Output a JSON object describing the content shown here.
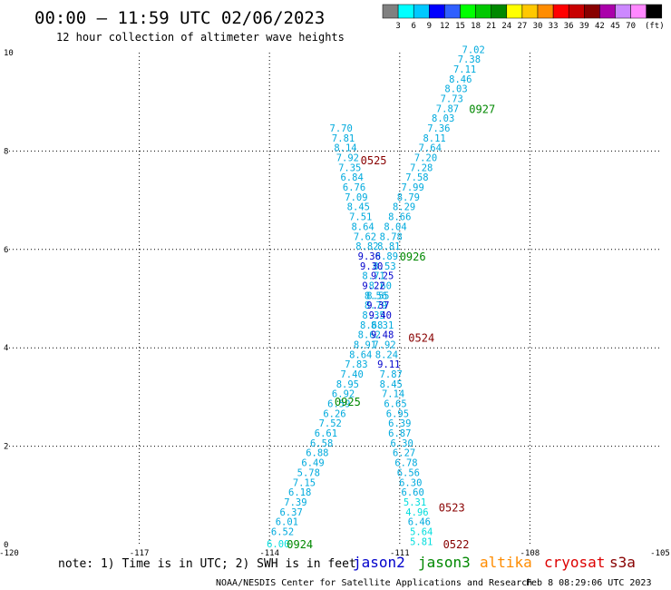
{
  "chart_data": {
    "type": "scatter",
    "title": "00:00 – 11:59 UTC 02/06/2023",
    "subtitle": "12 hour collection of altimeter wave heights",
    "xlim": [
      -120,
      -105
    ],
    "ylim": [
      0,
      10
    ],
    "xticks": [
      -120,
      -117,
      -114,
      -111,
      -108,
      -105
    ],
    "xtick_labels": [
      "-120",
      "-117",
      "-114",
      "-111",
      "-108",
      "-105"
    ],
    "yticks": [
      0,
      2,
      4,
      6,
      8,
      10
    ],
    "ytick_labels": [
      "0",
      "2",
      "4",
      "6",
      "8",
      "10"
    ],
    "grid": true,
    "colorbar": {
      "labels": [
        "3",
        "6",
        "9",
        "12",
        "15",
        "18",
        "21",
        "24",
        "27",
        "30",
        "33",
        "36",
        "39",
        "42",
        "45",
        "70"
      ],
      "unit": "(ft)",
      "colors": [
        "#808080",
        "#00ffff",
        "#00c8ff",
        "#0000ff",
        "#3060ff",
        "#00ff00",
        "#00c800",
        "#008800",
        "#ffff00",
        "#ffc800",
        "#ff8c00",
        "#ff0000",
        "#c80000",
        "#880000",
        "#aa00aa",
        "#cc88ff",
        "#ff88ff",
        "#000000"
      ]
    },
    "series": [
      {
        "name": "pass-a",
        "values": [
          {
            "x": -113.8,
            "y": 0.0,
            "v": "6.00",
            "c": "#00dddd"
          },
          {
            "x": -113.7,
            "y": 0.25,
            "v": "6.52",
            "c": "#00aadd"
          },
          {
            "x": -113.6,
            "y": 0.45,
            "v": "6.01",
            "c": "#00aadd"
          },
          {
            "x": -113.5,
            "y": 0.65,
            "v": "6.37",
            "c": "#00aadd"
          },
          {
            "x": -113.4,
            "y": 0.85,
            "v": "7.39",
            "c": "#00aadd"
          },
          {
            "x": -113.3,
            "y": 1.05,
            "v": "6.18",
            "c": "#00aadd"
          },
          {
            "x": -113.2,
            "y": 1.25,
            "v": "7.15",
            "c": "#00aadd"
          },
          {
            "x": -113.1,
            "y": 1.45,
            "v": "5.78",
            "c": "#00aadd"
          },
          {
            "x": -113.0,
            "y": 1.65,
            "v": "6.49",
            "c": "#00aadd"
          },
          {
            "x": -112.9,
            "y": 1.85,
            "v": "6.88",
            "c": "#00aadd"
          },
          {
            "x": -112.8,
            "y": 2.05,
            "v": "6.58",
            "c": "#00aadd"
          },
          {
            "x": -112.7,
            "y": 2.25,
            "v": "6.61",
            "c": "#00aadd"
          },
          {
            "x": -112.6,
            "y": 2.45,
            "v": "7.52",
            "c": "#00aadd"
          },
          {
            "x": -112.5,
            "y": 2.65,
            "v": "6.26",
            "c": "#00aadd"
          },
          {
            "x": -112.4,
            "y": 2.85,
            "v": "6.59",
            "c": "#00aadd"
          },
          {
            "x": -112.3,
            "y": 3.05,
            "v": "6.92",
            "c": "#00aadd"
          },
          {
            "x": -112.2,
            "y": 3.25,
            "v": "8.95",
            "c": "#00aadd"
          },
          {
            "x": -112.1,
            "y": 3.45,
            "v": "7.40",
            "c": "#00aadd"
          },
          {
            "x": -112.0,
            "y": 3.65,
            "v": "7.83",
            "c": "#00aadd"
          },
          {
            "x": -111.9,
            "y": 3.85,
            "v": "8.64",
            "c": "#00aadd"
          },
          {
            "x": -111.8,
            "y": 4.05,
            "v": "8.91",
            "c": "#00aadd"
          },
          {
            "x": -111.7,
            "y": 4.25,
            "v": "8.62",
            "c": "#00aadd"
          },
          {
            "x": -111.65,
            "y": 4.45,
            "v": "8.68",
            "c": "#00aadd"
          },
          {
            "x": -111.6,
            "y": 4.65,
            "v": "8.35",
            "c": "#00aadd"
          },
          {
            "x": -111.55,
            "y": 4.85,
            "v": "8.79",
            "c": "#00aadd"
          },
          {
            "x": -111.5,
            "y": 5.05,
            "v": "8.55",
            "c": "#00aadd"
          },
          {
            "x": -111.45,
            "y": 5.25,
            "v": "8.60",
            "c": "#00aadd"
          },
          {
            "x": -111.4,
            "y": 5.45,
            "v": "9.25",
            "c": "#0000cc"
          },
          {
            "x": -111.35,
            "y": 5.65,
            "v": "8.53",
            "c": "#00aadd"
          },
          {
            "x": -111.3,
            "y": 5.85,
            "v": "8.89",
            "c": "#00aadd"
          },
          {
            "x": -111.25,
            "y": 6.05,
            "v": "8.81",
            "c": "#00aadd"
          },
          {
            "x": -111.2,
            "y": 6.25,
            "v": "8.78",
            "c": "#00aadd"
          },
          {
            "x": -111.1,
            "y": 6.45,
            "v": "8.04",
            "c": "#00aadd"
          },
          {
            "x": -111.0,
            "y": 6.65,
            "v": "8.66",
            "c": "#00aadd"
          },
          {
            "x": -110.9,
            "y": 6.85,
            "v": "8.29",
            "c": "#00aadd"
          },
          {
            "x": -110.8,
            "y": 7.05,
            "v": "8.79",
            "c": "#00aadd"
          },
          {
            "x": -110.7,
            "y": 7.25,
            "v": "7.99",
            "c": "#00aadd"
          },
          {
            "x": -110.6,
            "y": 7.45,
            "v": "7.58",
            "c": "#00aadd"
          },
          {
            "x": -110.5,
            "y": 7.65,
            "v": "7.28",
            "c": "#00aadd"
          },
          {
            "x": -110.4,
            "y": 7.85,
            "v": "7.20",
            "c": "#00aadd"
          },
          {
            "x": -110.3,
            "y": 8.05,
            "v": "7.64",
            "c": "#00aadd"
          },
          {
            "x": -110.2,
            "y": 8.25,
            "v": "8.11",
            "c": "#00aadd"
          },
          {
            "x": -110.1,
            "y": 8.45,
            "v": "7.36",
            "c": "#00aadd"
          },
          {
            "x": -110.0,
            "y": 8.65,
            "v": "8.03",
            "c": "#00aadd"
          },
          {
            "x": -109.9,
            "y": 8.85,
            "v": "7.87",
            "c": "#00aadd"
          },
          {
            "x": -109.8,
            "y": 9.05,
            "v": "7.73",
            "c": "#00aadd"
          },
          {
            "x": -109.7,
            "y": 9.25,
            "v": "8.03",
            "c": "#00aadd"
          },
          {
            "x": -109.6,
            "y": 9.45,
            "v": "8.46",
            "c": "#00aadd"
          },
          {
            "x": -109.5,
            "y": 9.65,
            "v": "7.11",
            "c": "#00aadd"
          },
          {
            "x": -109.4,
            "y": 9.85,
            "v": "7.38",
            "c": "#00aadd"
          },
          {
            "x": -109.3,
            "y": 10.05,
            "v": "7.02",
            "c": "#00aadd"
          }
        ]
      },
      {
        "name": "pass-b",
        "values": [
          {
            "x": -110.5,
            "y": 0.05,
            "v": "5.81",
            "c": "#00dddd"
          },
          {
            "x": -110.5,
            "y": 0.25,
            "v": "5.64",
            "c": "#00dddd"
          },
          {
            "x": -110.55,
            "y": 0.45,
            "v": "6.46",
            "c": "#00aadd"
          },
          {
            "x": -110.6,
            "y": 0.65,
            "v": "4.96",
            "c": "#00dddd"
          },
          {
            "x": -110.65,
            "y": 0.85,
            "v": "5.31",
            "c": "#00dddd"
          },
          {
            "x": -110.7,
            "y": 1.05,
            "v": "6.60",
            "c": "#00aadd"
          },
          {
            "x": -110.75,
            "y": 1.25,
            "v": "6.30",
            "c": "#00aadd"
          },
          {
            "x": -110.8,
            "y": 1.45,
            "v": "6.56",
            "c": "#00aadd"
          },
          {
            "x": -110.85,
            "y": 1.65,
            "v": "6.78",
            "c": "#00aadd"
          },
          {
            "x": -110.9,
            "y": 1.85,
            "v": "6.27",
            "c": "#00aadd"
          },
          {
            "x": -110.95,
            "y": 2.05,
            "v": "6.30",
            "c": "#00aadd"
          },
          {
            "x": -111.0,
            "y": 2.25,
            "v": "6.87",
            "c": "#00aadd"
          },
          {
            "x": -111.0,
            "y": 2.45,
            "v": "6.39",
            "c": "#00aadd"
          },
          {
            "x": -111.05,
            "y": 2.65,
            "v": "6.95",
            "c": "#00aadd"
          },
          {
            "x": -111.1,
            "y": 2.85,
            "v": "6.65",
            "c": "#00aadd"
          },
          {
            "x": -111.15,
            "y": 3.05,
            "v": "7.14",
            "c": "#00aadd"
          },
          {
            "x": -111.2,
            "y": 3.25,
            "v": "8.45",
            "c": "#00aadd"
          },
          {
            "x": -111.2,
            "y": 3.45,
            "v": "7.87",
            "c": "#00aadd"
          },
          {
            "x": -111.25,
            "y": 3.65,
            "v": "9.11",
            "c": "#0000cc"
          },
          {
            "x": -111.3,
            "y": 3.85,
            "v": "8.24",
            "c": "#00aadd"
          },
          {
            "x": -111.35,
            "y": 4.05,
            "v": "7.92",
            "c": "#00aadd"
          },
          {
            "x": -111.4,
            "y": 4.25,
            "v": "9.48",
            "c": "#0000cc"
          },
          {
            "x": -111.4,
            "y": 4.45,
            "v": "8.31",
            "c": "#00aadd"
          },
          {
            "x": -111.45,
            "y": 4.65,
            "v": "9.40",
            "c": "#0000cc"
          },
          {
            "x": -111.5,
            "y": 4.85,
            "v": "9.37",
            "c": "#0000cc"
          },
          {
            "x": -111.55,
            "y": 5.05,
            "v": "8.56",
            "c": "#00aadd"
          },
          {
            "x": -111.6,
            "y": 5.25,
            "v": "9.22",
            "c": "#0000cc"
          },
          {
            "x": -111.6,
            "y": 5.45,
            "v": "8.71",
            "c": "#00aadd"
          },
          {
            "x": -111.65,
            "y": 5.65,
            "v": "9.30",
            "c": "#0000cc"
          },
          {
            "x": -111.7,
            "y": 5.85,
            "v": "9.36",
            "c": "#0000cc"
          },
          {
            "x": -111.75,
            "y": 6.05,
            "v": "8.82",
            "c": "#00aadd"
          },
          {
            "x": -111.8,
            "y": 6.25,
            "v": "7.62",
            "c": "#00aadd"
          },
          {
            "x": -111.85,
            "y": 6.45,
            "v": "8.64",
            "c": "#00aadd"
          },
          {
            "x": -111.9,
            "y": 6.65,
            "v": "7.51",
            "c": "#00aadd"
          },
          {
            "x": -111.95,
            "y": 6.85,
            "v": "8.45",
            "c": "#00aadd"
          },
          {
            "x": -112.0,
            "y": 7.05,
            "v": "7.09",
            "c": "#00aadd"
          },
          {
            "x": -112.05,
            "y": 7.25,
            "v": "6.76",
            "c": "#00aadd"
          },
          {
            "x": -112.1,
            "y": 7.45,
            "v": "6.84",
            "c": "#00aadd"
          },
          {
            "x": -112.15,
            "y": 7.65,
            "v": "7.35",
            "c": "#00aadd"
          },
          {
            "x": -112.2,
            "y": 7.85,
            "v": "7.92",
            "c": "#00aadd"
          },
          {
            "x": -112.25,
            "y": 8.05,
            "v": "8.14",
            "c": "#00aadd"
          },
          {
            "x": -112.3,
            "y": 8.25,
            "v": "7.81",
            "c": "#00aadd"
          },
          {
            "x": -112.35,
            "y": 8.45,
            "v": "7.70",
            "c": "#00aadd"
          }
        ]
      }
    ],
    "time_labels": [
      {
        "text": "0924",
        "x": -113.3,
        "y": 0.0,
        "c": "#008800"
      },
      {
        "text": "0925",
        "x": -112.2,
        "y": 2.9,
        "c": "#008800"
      },
      {
        "text": "0926",
        "x": -110.7,
        "y": 5.85,
        "c": "#008800"
      },
      {
        "text": "0927",
        "x": -109.1,
        "y": 8.85,
        "c": "#008800"
      },
      {
        "text": "0522",
        "x": -109.7,
        "y": 0.0,
        "c": "#880000"
      },
      {
        "text": "0523",
        "x": -109.8,
        "y": 0.75,
        "c": "#880000"
      },
      {
        "text": "0524",
        "x": -110.5,
        "y": 4.2,
        "c": "#880000"
      },
      {
        "text": "0525",
        "x": -111.6,
        "y": 7.8,
        "c": "#880000"
      }
    ]
  },
  "footer": {
    "note": "note: 1) Time is in UTC; 2) SWH is in feet",
    "legend": [
      {
        "label": "jason2",
        "color": "#0000cc"
      },
      {
        "label": "jason3",
        "color": "#008800"
      },
      {
        "label": "altika",
        "color": "#ff8c00"
      },
      {
        "label": "cryosat",
        "color": "#dd0000"
      },
      {
        "label": "s3a",
        "color": "#880000"
      }
    ],
    "credit": "NOAA/NESDIS Center for Satellite Applications and Research",
    "timestamp": "Feb  8 08:29:06 UTC 2023"
  }
}
